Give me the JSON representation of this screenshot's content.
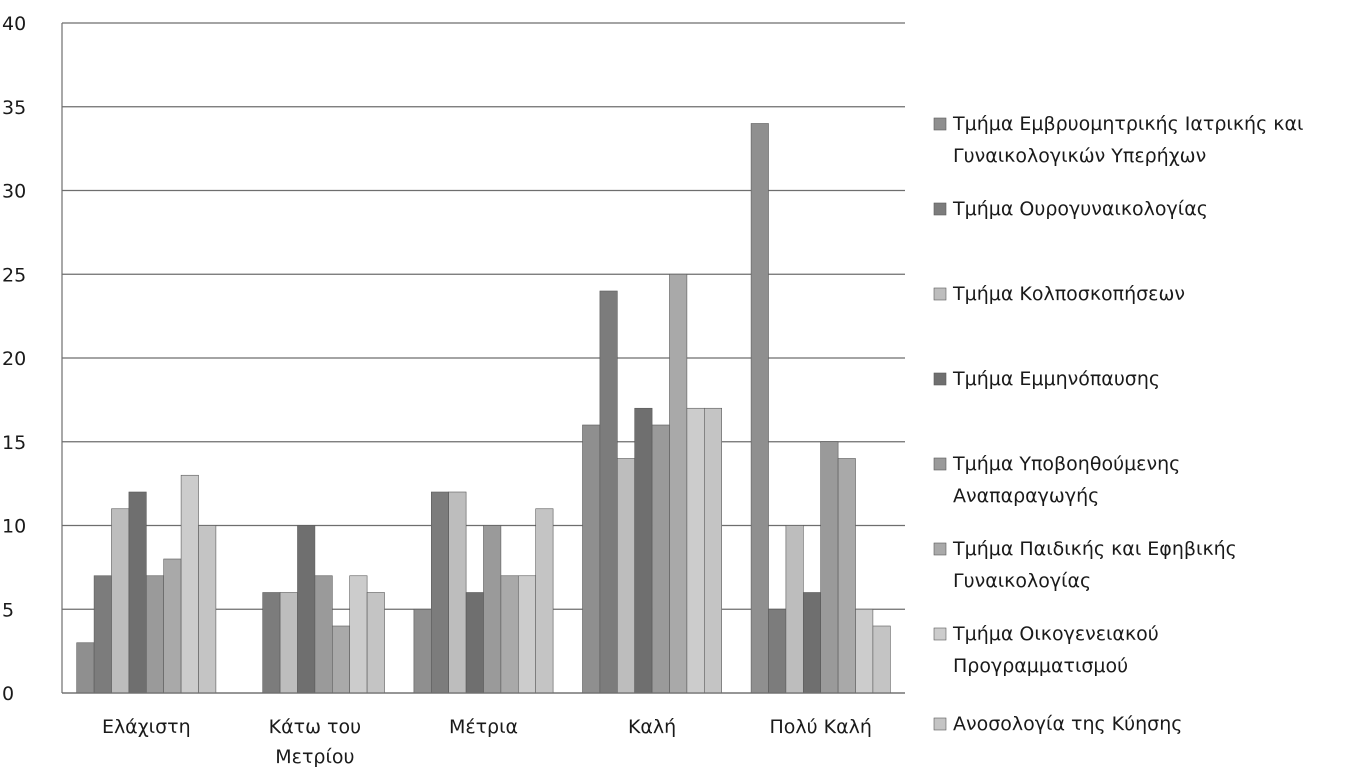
{
  "chart_data": {
    "type": "bar",
    "title": "",
    "xlabel": "",
    "ylabel": "",
    "ylim": [
      0,
      40
    ],
    "yticks": [
      "0",
      "5",
      "10",
      "15",
      "20",
      "25",
      "30",
      "35",
      "40"
    ],
    "grid": true,
    "legend_position": "right",
    "categories": [
      [
        "Ελάχιστη"
      ],
      [
        "Κάτω του",
        "Μετρίου"
      ],
      [
        "Μέτρια"
      ],
      [
        "Καλή"
      ],
      [
        "Πολύ Καλή"
      ]
    ],
    "series": [
      {
        "name": [
          "Τμήμα Εμβρυομητρικής Ιατρικής και",
          "Γυναικολογικών Υπερήχων"
        ],
        "color": "#8f8f8f",
        "values": [
          3,
          0,
          5,
          16,
          34
        ]
      },
      {
        "name": [
          "Τμήμα Ουρογυναικολογίας"
        ],
        "color": "#7c7c7c",
        "values": [
          7,
          6,
          12,
          24,
          5
        ]
      },
      {
        "name": [
          "Τμήμα Κολποσκοπήσεων"
        ],
        "color": "#bdbdbd",
        "values": [
          11,
          6,
          12,
          14,
          10
        ]
      },
      {
        "name": [
          "Τμήμα Εμμηνόπαυσης"
        ],
        "color": "#6f6f6f",
        "values": [
          12,
          10,
          6,
          17,
          6
        ]
      },
      {
        "name": [
          "Τμήμα Υποβοηθούμενης",
          "Αναπαραγωγής"
        ],
        "color": "#9a9a9a",
        "values": [
          7,
          7,
          10,
          16,
          15
        ]
      },
      {
        "name": [
          "Τμήμα Παιδικής και Εφηβικής",
          "Γυναικολογίας"
        ],
        "color": "#a9a9a9",
        "values": [
          8,
          4,
          7,
          25,
          14
        ]
      },
      {
        "name": [
          "Τμήμα Οικογενειακού",
          "Προγραμματισμού"
        ],
        "color": "#cccccc",
        "values": [
          13,
          7,
          7,
          17,
          5
        ]
      },
      {
        "name": [
          "Ανοσολογία της Κύησης"
        ],
        "color": "#c4c4c4",
        "values": [
          10,
          6,
          11,
          17,
          4
        ]
      }
    ]
  }
}
